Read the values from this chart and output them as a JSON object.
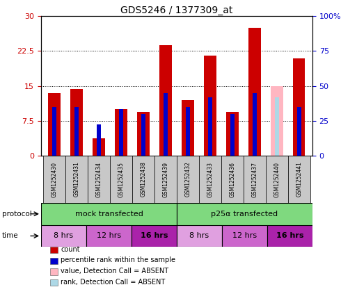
{
  "title": "GDS5246 / 1377309_at",
  "samples": [
    "GSM1252430",
    "GSM1252431",
    "GSM1252434",
    "GSM1252435",
    "GSM1252438",
    "GSM1252439",
    "GSM1252432",
    "GSM1252433",
    "GSM1252436",
    "GSM1252437",
    "GSM1252440",
    "GSM1252441"
  ],
  "red_values": [
    13.5,
    14.3,
    3.8,
    10.0,
    9.5,
    23.8,
    12.0,
    21.5,
    9.5,
    27.5,
    15.0,
    21.0
  ],
  "blue_values": [
    10.5,
    10.5,
    6.8,
    10.0,
    9.0,
    13.5,
    10.5,
    12.5,
    9.0,
    13.5,
    12.5,
    10.5
  ],
  "absent_mask": [
    false,
    false,
    false,
    false,
    false,
    false,
    false,
    false,
    false,
    false,
    true,
    false
  ],
  "ylim_left": [
    0,
    30
  ],
  "ylim_right": [
    0,
    100
  ],
  "yticks_left": [
    0,
    7.5,
    15,
    22.5,
    30
  ],
  "yticks_left_labels": [
    "0",
    "7.5",
    "15",
    "22.5",
    "30"
  ],
  "yticks_right": [
    0,
    25,
    50,
    75,
    100
  ],
  "yticks_right_labels": [
    "0",
    "25",
    "50",
    "75",
    "100%"
  ],
  "mock_label": "mock transfected",
  "p25_label": "p25α transfected",
  "protocol_color": "#7FD97F",
  "time_labels": [
    "8 hrs",
    "12 hrs",
    "16 hrs",
    "8 hrs",
    "12 hrs",
    "16 hrs"
  ],
  "time_colors": [
    "#E0A0E0",
    "#CC66CC",
    "#AA22AA",
    "#E0A0E0",
    "#CC66CC",
    "#AA22AA"
  ],
  "bar_color_red": "#CC0000",
  "bar_color_blue": "#0000CC",
  "bar_color_pink": "#FFB6C1",
  "bar_color_lightblue": "#ADD8E6",
  "bar_width": 0.55,
  "blue_bar_width": 0.18,
  "bg_color": "#ffffff",
  "grid_color": "#000000",
  "label_color_left": "#CC0000",
  "label_color_right": "#0000CC",
  "sample_box_color": "#C8C8C8"
}
